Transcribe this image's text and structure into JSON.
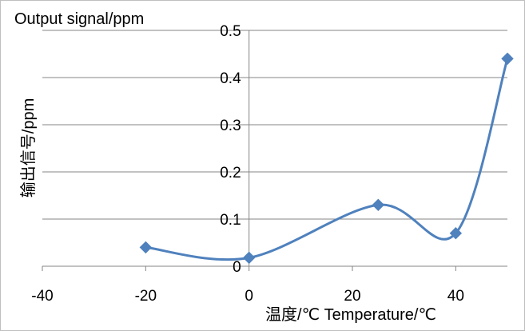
{
  "chart_data": {
    "type": "line",
    "title": "Output signal/ppm",
    "ylabel": "输出信号/ppm",
    "xlabel": "温度/℃ Temperature/℃",
    "x_ticks": [
      -40,
      -20,
      0,
      20,
      40
    ],
    "y_ticks": [
      0,
      0.1,
      0.2,
      0.3,
      0.4,
      0.5
    ],
    "x_tick_labels": [
      "-40",
      "-20",
      "0",
      "20",
      "40"
    ],
    "y_tick_labels": [
      "0",
      "0.1",
      "0.2",
      "0.3",
      "0.4",
      "0.5"
    ],
    "xlim": [
      -40,
      50
    ],
    "ylim": [
      0,
      0.5
    ],
    "grid": true,
    "smooth": true,
    "series": [
      {
        "x": [
          -20,
          0,
          25,
          40,
          50
        ],
        "y": [
          0.04,
          0.018,
          0.13,
          0.07,
          0.44
        ]
      }
    ],
    "colors": {
      "line": "#4f81bd",
      "marker": "#4f81bd",
      "grid": "#868686",
      "axis": "#868686"
    }
  }
}
